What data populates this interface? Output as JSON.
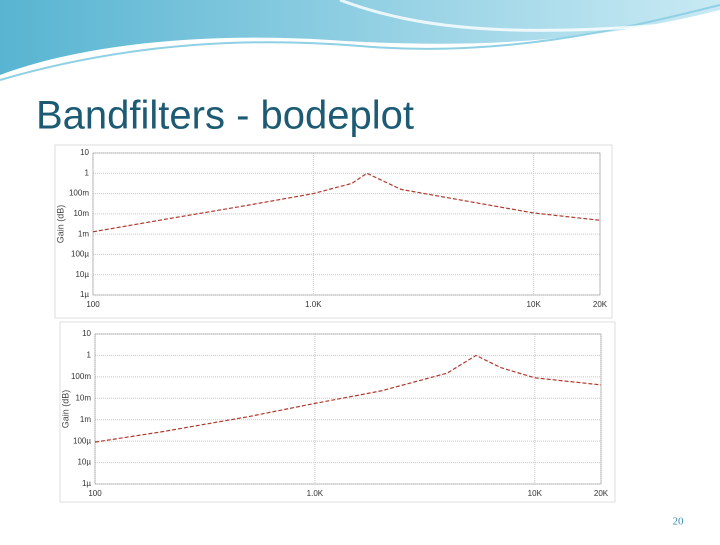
{
  "title": "Bandfilters - bodeplot",
  "page_number": "20",
  "chart_data": [
    {
      "type": "line",
      "ylabel": "Gain (dB)",
      "log_x": true,
      "log_y": true,
      "grid": true,
      "color": "#b03a2e",
      "x": [
        100,
        200,
        500,
        1000,
        1500,
        1750,
        2500,
        5000,
        10000,
        20000
      ],
      "values": [
        0.0013,
        0.0048,
        0.026,
        0.1,
        0.32,
        1,
        0.16,
        0.042,
        0.011,
        0.0048
      ],
      "xlim": [
        100,
        20000
      ],
      "xticks": [
        100,
        {
          "value": 1000,
          "label": "1.0K"
        },
        {
          "value": 10000,
          "label": "10K"
        },
        {
          "value": 20000,
          "label": "20K"
        }
      ],
      "ylim": [
        1e-06,
        10
      ],
      "yticks": [
        10,
        1,
        {
          "value": 0.1,
          "label": "100m"
        },
        {
          "value": 0.01,
          "label": "10m"
        },
        {
          "value": 0.001,
          "label": "1m"
        },
        {
          "value": 0.0001,
          "label": "100µ"
        },
        {
          "value": 1e-05,
          "label": "10µ"
        },
        {
          "value": 1e-06,
          "label": "1µ"
        }
      ]
    },
    {
      "type": "line",
      "ylabel": "Gain (dB)",
      "log_x": true,
      "log_y": true,
      "grid": true,
      "color": "#b03a2e",
      "x": [
        100,
        200,
        500,
        1000,
        2000,
        4000,
        5400,
        7000,
        10000,
        20000
      ],
      "values": [
        9e-05,
        0.00027,
        0.0014,
        0.0058,
        0.022,
        0.15,
        1,
        0.27,
        0.09,
        0.042
      ],
      "xlim": [
        100,
        20000
      ],
      "xticks": [
        100,
        {
          "value": 1000,
          "label": "1.0K"
        },
        {
          "value": 10000,
          "label": "10K"
        },
        {
          "value": 20000,
          "label": "20K"
        }
      ],
      "ylim": [
        1e-06,
        10
      ],
      "yticks": [
        10,
        1,
        {
          "value": 0.1,
          "label": "100m"
        },
        {
          "value": 0.01,
          "label": "10m"
        },
        {
          "value": 0.001,
          "label": "1m"
        },
        {
          "value": 0.0001,
          "label": "100µ"
        },
        {
          "value": 1e-05,
          "label": "10µ"
        },
        {
          "value": 1e-06,
          "label": "1µ"
        }
      ]
    }
  ]
}
